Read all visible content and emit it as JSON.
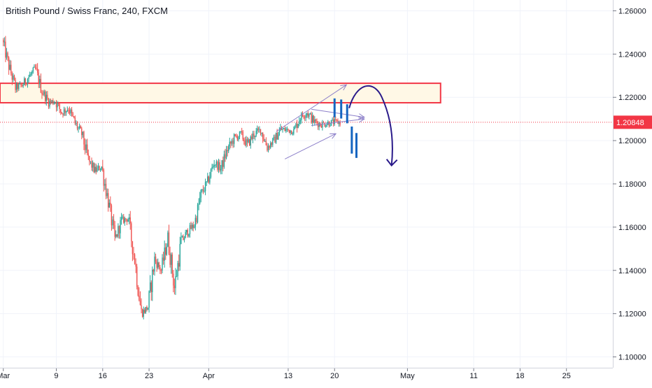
{
  "header": {
    "title": "British Pound / Swiss Franc, 240, FXCM"
  },
  "colors": {
    "bull": "#26a69a",
    "bear": "#ef5350",
    "zone_border": "#f23645",
    "zone_fill": "#fff8e6",
    "price_tag": "#f23645",
    "channel": "#8c7fc9",
    "projection": "#2a1a8a",
    "marks": "#1565c0",
    "grid": "#f0f3fa"
  },
  "chart_data": {
    "type": "candlestick",
    "title": "British Pound / Swiss Franc, 240, FXCM",
    "ylim": [
      1.095,
      1.265
    ],
    "y_ticks": [
      "1.26000",
      "1.24000",
      "1.22000",
      "1.20000",
      "1.18000",
      "1.16000",
      "1.14000",
      "1.12000",
      "1.10000"
    ],
    "y_tick_values": [
      1.26,
      1.24,
      1.22,
      1.2,
      1.18,
      1.16,
      1.14,
      1.12,
      1.1
    ],
    "x_ticks": [
      "Mar",
      "9",
      "16",
      "23",
      "Apr",
      "13",
      "20",
      "May",
      "11",
      "18",
      "25"
    ],
    "x_tick_days": [
      0,
      8,
      15,
      22,
      31,
      43,
      50,
      61,
      71,
      78,
      85
    ],
    "xlim_days": [
      -0.5,
      92
    ],
    "current_price": "1.20848",
    "current_price_value": 1.20848,
    "close_path": [
      [
        0,
        1.2465
      ],
      [
        1,
        1.2345
      ],
      [
        2,
        1.2245
      ],
      [
        3,
        1.2255
      ],
      [
        4,
        1.2295
      ],
      [
        5,
        1.233
      ],
      [
        6,
        1.223
      ],
      [
        7,
        1.218
      ],
      [
        8,
        1.218
      ],
      [
        9,
        1.213
      ],
      [
        10,
        1.215
      ],
      [
        11,
        1.208
      ],
      [
        12,
        1.203
      ],
      [
        13,
        1.191
      ],
      [
        14,
        1.186
      ],
      [
        15,
        1.188
      ],
      [
        16,
        1.172
      ],
      [
        17,
        1.154
      ],
      [
        18,
        1.163
      ],
      [
        19,
        1.164
      ],
      [
        20,
        1.145
      ],
      [
        21,
        1.12
      ],
      [
        22,
        1.123
      ],
      [
        23,
        1.145
      ],
      [
        24,
        1.14
      ],
      [
        25,
        1.155
      ],
      [
        26,
        1.132
      ],
      [
        27,
        1.153
      ],
      [
        28,
        1.158
      ],
      [
        29,
        1.161
      ],
      [
        30,
        1.175
      ],
      [
        31,
        1.181
      ],
      [
        32,
        1.19
      ],
      [
        33,
        1.187
      ],
      [
        34,
        1.196
      ],
      [
        35,
        1.201
      ],
      [
        36,
        1.203
      ],
      [
        37,
        1.198
      ],
      [
        38,
        1.203
      ],
      [
        39,
        1.205
      ],
      [
        40,
        1.197
      ],
      [
        41,
        1.2
      ],
      [
        42,
        1.205
      ],
      [
        43,
        1.205
      ],
      [
        44,
        1.2045
      ],
      [
        45,
        1.211
      ],
      [
        46,
        1.213
      ],
      [
        47,
        1.209
      ],
      [
        48,
        1.2075
      ],
      [
        49,
        1.208
      ],
      [
        50,
        1.2085
      ],
      [
        51,
        1.2085
      ]
    ],
    "resistance_zone": {
      "from_day": -0.5,
      "to_day": 66,
      "price_low": 1.2175,
      "price_high": 1.2265
    },
    "channel_lines": [
      {
        "from": [
          41.2,
          1.2042
        ],
        "to": [
          51.8,
          1.2258
        ]
      },
      {
        "from": [
          42.5,
          1.1915
        ],
        "to": [
          50.2,
          1.2032
        ]
      },
      {
        "from": [
          46.5,
          1.2145
        ],
        "to": [
          54.5,
          1.2108
        ]
      },
      {
        "from": [
          46.5,
          1.207
        ],
        "to": [
          54.5,
          1.21
        ]
      }
    ],
    "marks_up": [
      [
        50.0,
        1.2108,
        1.2195
      ],
      [
        51.0,
        1.2102,
        1.219
      ],
      [
        51.9,
        1.208,
        1.2168
      ]
    ],
    "marks_down": [
      [
        52.6,
        1.194,
        1.2065
      ],
      [
        53.3,
        1.192,
        1.2035
      ]
    ],
    "projection": {
      "start": [
        52.2,
        1.215
      ],
      "peak_day": 54.8,
      "peak_price": 1.224,
      "end": [
        58.6,
        1.1885
      ]
    }
  }
}
